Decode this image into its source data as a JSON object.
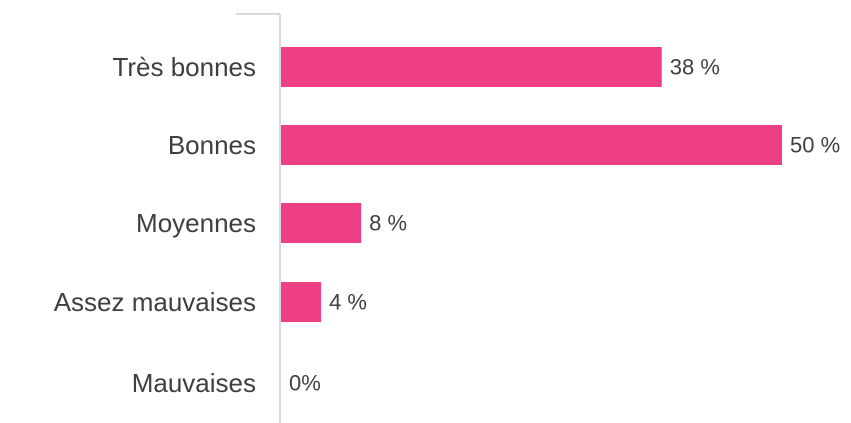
{
  "chart_data": {
    "type": "bar",
    "orientation": "horizontal",
    "categories": [
      "Très bonnes",
      "Bonnes",
      "Moyennes",
      "Assez mauvaises",
      "Mauvaises"
    ],
    "values": [
      38,
      50,
      8,
      4,
      0
    ],
    "value_labels": [
      "38 %",
      "50 %",
      "8 %",
      "4 %",
      "0%"
    ],
    "title": "",
    "xlabel": "",
    "ylabel": "",
    "xlim": [
      0,
      50
    ],
    "grid": false,
    "legend": "none",
    "colors": {
      "bar": "#ee3f84",
      "axis": "#d9d9d9",
      "category_text": "#3f3f3f",
      "value_text": "#404040"
    }
  }
}
